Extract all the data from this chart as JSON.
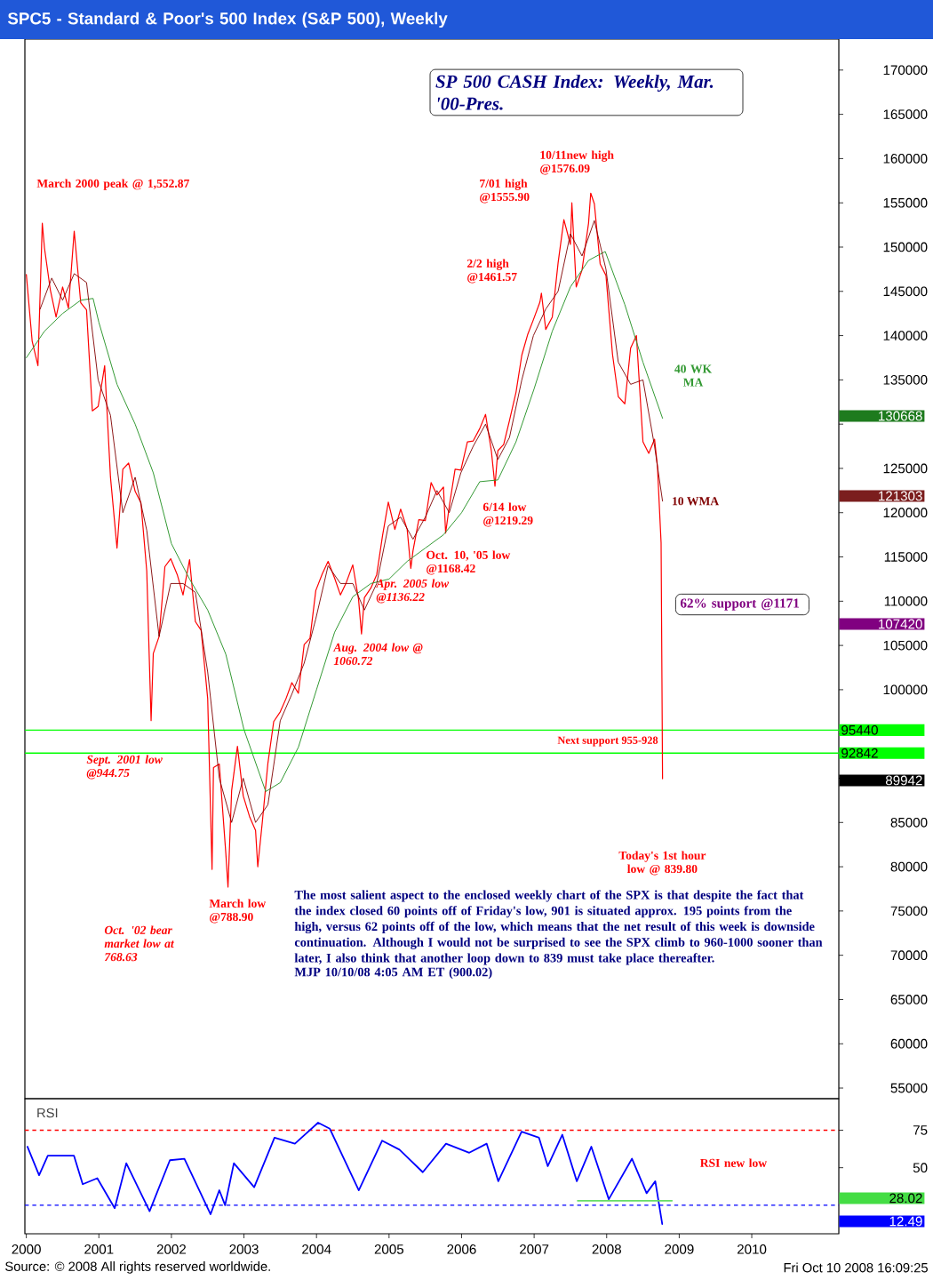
{
  "chart_data": [
    {
      "type": "line",
      "title": "SPC5 - Standard & Poor's 500 Index (S&P 500), Weekly",
      "subtitle": "SP 500 CASH Index: Weekly, Mar. '00-Pres.",
      "xlim": [
        1999.98,
        2011.2
      ],
      "ylim": [
        53800,
        173500
      ],
      "tick_labels": "y",
      "yticks": [
        55000,
        60000,
        65000,
        70000,
        75000,
        80000,
        85000,
        {
          "value": 90000,
          "label": null
        },
        {
          "value": 95000,
          "label": null
        },
        100000,
        105000,
        110000,
        115000,
        120000,
        125000,
        {
          "value": 130000,
          "label": null
        },
        135000,
        140000,
        145000,
        150000,
        155000,
        160000,
        165000,
        170000
      ],
      "series": [
        {
          "color": "#ff0000",
          "x": [
            2000.0,
            2000.08,
            2000.16,
            2000.22,
            2000.25,
            2000.33,
            2000.41,
            2000.5,
            2000.58,
            2000.66,
            2000.75,
            2000.83,
            2000.91,
            2000.99,
            2001.08,
            2001.16,
            2001.25,
            2001.33,
            2001.41,
            2001.5,
            2001.58,
            2001.66,
            2001.72,
            2001.75,
            2001.83,
            2001.91,
            2001.99,
            2002.08,
            2002.16,
            2002.25,
            2002.33,
            2002.41,
            2002.5,
            2002.56,
            2002.58,
            2002.66,
            2002.75,
            2002.78,
            2002.83,
            2002.91,
            2002.99,
            2003.08,
            2003.16,
            2003.19,
            2003.25,
            2003.33,
            2003.41,
            2003.5,
            2003.58,
            2003.66,
            2003.75,
            2003.83,
            2003.91,
            2003.99,
            2004.08,
            2004.16,
            2004.25,
            2004.33,
            2004.41,
            2004.5,
            2004.58,
            2004.62,
            2004.66,
            2004.75,
            2004.83,
            2004.91,
            2004.99,
            2005.08,
            2005.16,
            2005.25,
            2005.3,
            2005.33,
            2005.41,
            2005.5,
            2005.58,
            2005.66,
            2005.75,
            2005.78,
            2005.83,
            2005.91,
            2005.99,
            2006.08,
            2006.16,
            2006.25,
            2006.33,
            2006.41,
            2006.46,
            2006.5,
            2006.58,
            2006.66,
            2006.75,
            2006.83,
            2006.91,
            2006.99,
            2007.08,
            2007.1,
            2007.16,
            2007.25,
            2007.33,
            2007.41,
            2007.5,
            2007.52,
            2007.58,
            2007.66,
            2007.75,
            2007.78,
            2007.83,
            2007.91,
            2007.99,
            2008.08,
            2008.16,
            2008.25,
            2008.33,
            2008.41,
            2008.5,
            2008.58,
            2008.66,
            2008.7,
            2008.75,
            2008.77
          ],
          "values": [
            146900,
            139400,
            136600,
            152700,
            149900,
            145200,
            142100,
            145500,
            143100,
            151800,
            143700,
            142900,
            131500,
            132000,
            136600,
            124000,
            116000,
            124900,
            125600,
            122400,
            121100,
            113400,
            96500,
            104100,
            106000,
            113900,
            114800,
            113000,
            110700,
            114700,
            107700,
            106700,
            99000,
            79700,
            91200,
            91600,
            81500,
            77700,
            88600,
            93600,
            88000,
            85600,
            84100,
            80000,
            84800,
            91700,
            96400,
            97500,
            99000,
            100800,
            99600,
            105100,
            105800,
            111200,
            113100,
            114500,
            112600,
            110700,
            112100,
            114100,
            110200,
            106300,
            110400,
            111500,
            113000,
            117400,
            121200,
            118100,
            120400,
            118100,
            113700,
            115700,
            119200,
            119100,
            123400,
            122000,
            122900,
            117700,
            120700,
            124900,
            124800,
            128000,
            128100,
            129500,
            131100,
            127000,
            123000,
            127000,
            127700,
            130400,
            133600,
            137800,
            140100,
            141800,
            143800,
            144800,
            140700,
            142100,
            148200,
            153100,
            150300,
            155000,
            145500,
            147400,
            152700,
            156100,
            154900,
            148100,
            146800,
            137900,
            133100,
            132300,
            138600,
            140000,
            128000,
            126700,
            128300,
            125200,
            116600,
            89942
          ]
        },
        {
          "name": "40 WK MA",
          "color": "#339933",
          "x": [
            2000.0,
            2000.25,
            2000.5,
            2000.75,
            2000.92,
            2001.0,
            2001.25,
            2001.5,
            2001.75,
            2002.0,
            2002.25,
            2002.5,
            2002.75,
            2003.0,
            2003.3,
            2003.5,
            2003.75,
            2004.0,
            2004.25,
            2004.5,
            2004.75,
            2005.0,
            2005.25,
            2005.5,
            2005.75,
            2006.0,
            2006.25,
            2006.5,
            2006.75,
            2007.0,
            2007.25,
            2007.5,
            2007.75,
            2007.98,
            2008.25,
            2008.5,
            2008.77
          ],
          "values": [
            137500,
            140500,
            142500,
            144000,
            144200,
            141500,
            134500,
            130000,
            124500,
            116500,
            112500,
            109000,
            104000,
            95500,
            88500,
            89500,
            93500,
            100000,
            106500,
            110500,
            112000,
            112500,
            114500,
            116000,
            117500,
            120000,
            123500,
            123700,
            128000,
            134000,
            140500,
            145500,
            148500,
            149500,
            143500,
            137000,
            130668
          ]
        },
        {
          "name": "10 WMA",
          "color": "#800000",
          "x": [
            2000.19,
            2000.35,
            2000.5,
            2000.66,
            2000.83,
            2000.99,
            2001.16,
            2001.33,
            2001.5,
            2001.66,
            2001.83,
            2001.99,
            2002.16,
            2002.33,
            2002.5,
            2002.66,
            2002.83,
            2002.99,
            2003.16,
            2003.33,
            2003.5,
            2003.66,
            2003.83,
            2003.99,
            2004.16,
            2004.33,
            2004.5,
            2004.66,
            2004.83,
            2004.99,
            2005.16,
            2005.33,
            2005.5,
            2005.66,
            2005.83,
            2005.99,
            2006.16,
            2006.33,
            2006.5,
            2006.66,
            2006.83,
            2006.99,
            2007.16,
            2007.33,
            2007.5,
            2007.66,
            2007.83,
            2007.99,
            2008.16,
            2008.33,
            2008.5,
            2008.66,
            2008.77
          ],
          "values": [
            143000,
            146500,
            144000,
            147000,
            146000,
            135000,
            131000,
            120000,
            124000,
            118000,
            106000,
            112000,
            112000,
            111000,
            102000,
            90000,
            85000,
            90000,
            85000,
            87000,
            96500,
            99500,
            103000,
            108000,
            114000,
            112000,
            112000,
            109000,
            112000,
            118500,
            119500,
            117000,
            119500,
            122500,
            120000,
            124500,
            127500,
            130000,
            126000,
            128500,
            135000,
            140000,
            143000,
            145000,
            151500,
            149000,
            153000,
            147500,
            137000,
            134500,
            135000,
            127500,
            121303
          ]
        }
      ],
      "ref_lines": [
        {
          "axis": "y",
          "value": 95440,
          "label": "95440",
          "color": "#00ff00",
          "line_style": "solid"
        },
        {
          "axis": "y",
          "value": 92842,
          "label": "92842",
          "color": "#00ff00",
          "line_style": "solid"
        }
      ],
      "annotations": [
        "March 2000 peak @ 1,552.87",
        "2/2 high @1461.57",
        "7/01 high @1555.90",
        "10/11new high @1576.09",
        "6/14 low @1219.29",
        "Oct. 10, '05 low @1168.42",
        "Apr. 2005 low @1136.22",
        "Aug. 2004 low @ 1060.72",
        "62% support @1171",
        "Next support 955-928",
        "Sept. 2001 low @944.75",
        "Today's 1st hour low @ 839.80",
        "March low @788.90",
        "Oct. '02 bear market low at 768.63",
        "The most salient aspect to the enclosed weekly chart of the SPX is that despite the fact that the index closed 60 points off of Friday's low, 901 is situated approx. 195 points from the high, versus 62 points off of the low, which means that the net result of this week is downside continuation. Although I would not be surprised to see the SPX climb to 960-1000 sooner than later, I also think that another loop down to 839 must take place thereafter.",
        "MJP 10/10/08 4:05 AM ET (900.02)",
        "130668",
        "121303",
        "107420",
        "89942"
      ]
    },
    {
      "type": "line",
      "title": "RSI",
      "xlim": [
        1999.98,
        2011.2
      ],
      "ylim": [
        6,
        96
      ],
      "yticks": [
        50,
        75
      ],
      "xticks": [
        2000,
        2001,
        2002,
        2003,
        2004,
        2005,
        2006,
        2007,
        2008,
        2009,
        2010
      ],
      "series": [
        {
          "color": "#0000ff",
          "x": [
            2000.016,
            2000.176,
            2000.296,
            2000.657,
            2000.777,
            2000.978,
            2001.218,
            2001.378,
            2001.699,
            2001.979,
            2002.179,
            2002.54,
            2002.66,
            2002.74,
            2002.861,
            2003.141,
            2003.421,
            2003.702,
            2004.022,
            2004.183,
            2004.583,
            2004.904,
            2005.144,
            2005.465,
            2005.785,
            2006.106,
            2006.346,
            2006.506,
            2006.827,
            2007.067,
            2007.188,
            2007.388,
            2007.588,
            2007.788,
            2008.029,
            2008.349,
            2008.55,
            2008.67,
            2008.766
          ],
          "values": [
            64,
            45,
            58,
            58,
            39,
            43,
            23,
            53,
            21,
            55,
            56,
            19,
            35,
            25,
            53,
            37,
            70,
            66,
            80,
            76,
            35,
            68,
            62,
            47,
            66,
            60,
            66,
            41,
            74,
            70,
            51,
            72,
            41,
            64,
            29,
            56,
            33,
            41,
            12.49
          ]
        },
        {
          "color": "#66dd66",
          "x": [
            2007.6,
            2008.9
          ],
          "values": [
            28.02,
            28.02
          ]
        }
      ],
      "ref_lines": [
        {
          "axis": "y",
          "value": 75,
          "color": "#ff0000",
          "line_style": "dashed"
        },
        {
          "axis": "y",
          "value": 25,
          "color": "#0000ff",
          "line_style": "dashed"
        }
      ],
      "annotations": [
        "RSI new low",
        "28.02",
        "12.49",
        "Source: © 2008 All rights reserved worldwide.",
        "Fri Oct 10 2008 16:09:25"
      ]
    }
  ]
}
